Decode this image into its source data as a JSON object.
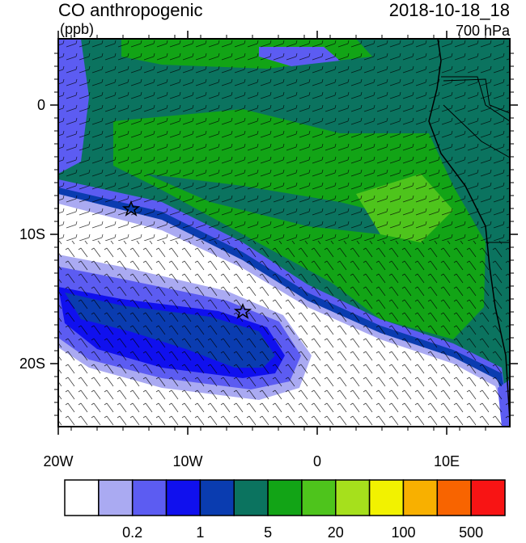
{
  "header": {
    "title": "CO anthropogenic",
    "units": "(ppb)",
    "datetime": "2018-10-18_18",
    "level": "700 hPa"
  },
  "map": {
    "lat_ticks": [
      "0",
      "10S",
      "20S"
    ],
    "lon_ticks": [
      "20W",
      "10W",
      "0",
      "10E"
    ]
  },
  "colorbar": {
    "colors": [
      "#ffffff",
      "#aaaaf2",
      "#5c5cf2",
      "#1010ee",
      "#0a3cb0",
      "#0b735f",
      "#12a416",
      "#4ec41c",
      "#a6e01c",
      "#f2f200",
      "#f8b000",
      "#f86400",
      "#f81414"
    ],
    "labels": [
      "0.2",
      "1",
      "5",
      "20",
      "100",
      "500"
    ]
  }
}
